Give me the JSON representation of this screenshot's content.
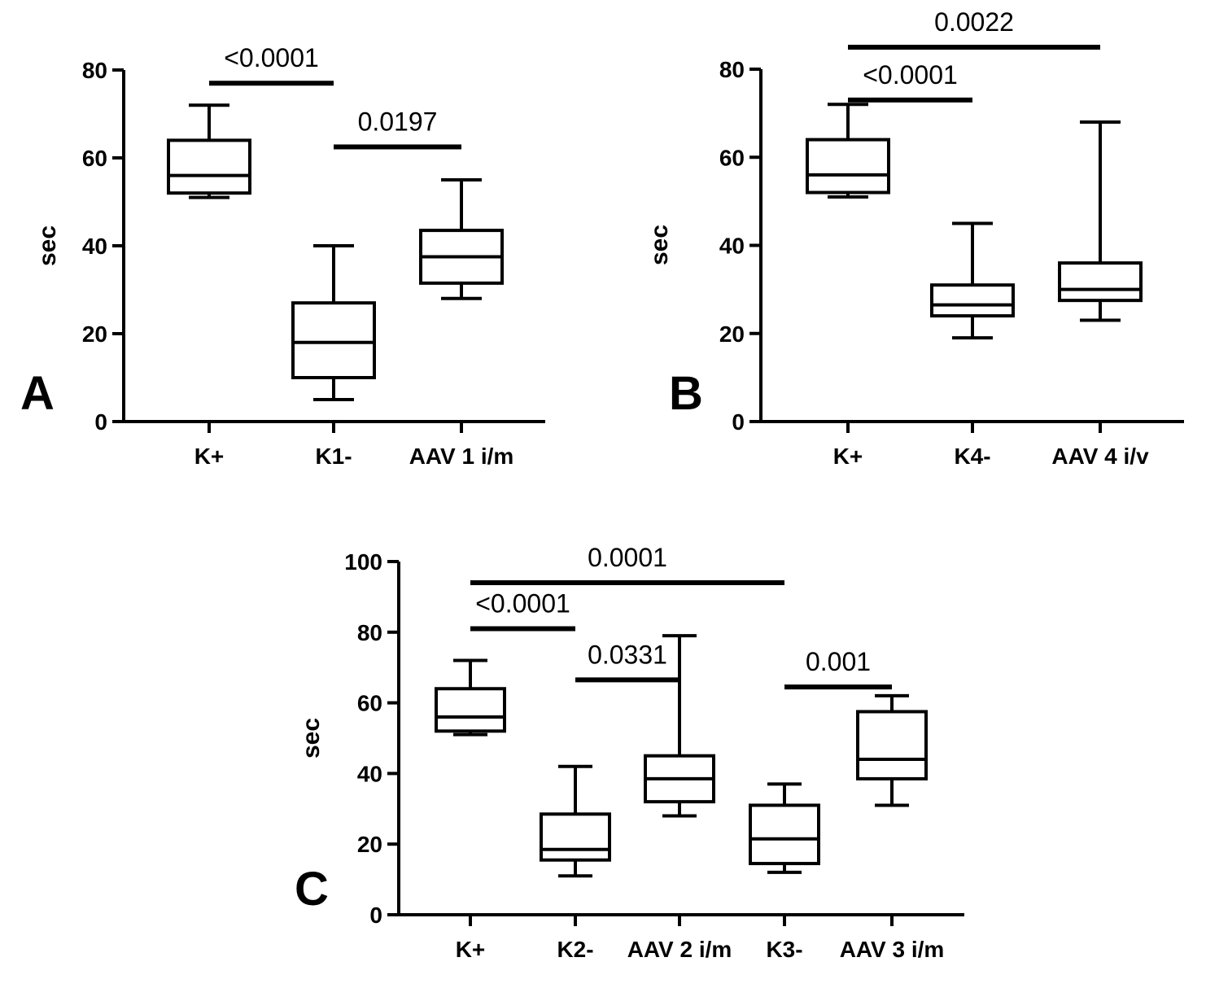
{
  "chart_data": [
    {
      "type": "box",
      "panel": "A",
      "ylabel": "sec",
      "ylim": [
        0,
        80
      ],
      "yticks": [
        0,
        20,
        40,
        60,
        80
      ],
      "categories": [
        "K+",
        "K1-",
        "AAV 1 i/m"
      ],
      "boxes": [
        {
          "min": 51,
          "q1": 52,
          "median": 56,
          "q3": 64,
          "max": 72
        },
        {
          "min": 5,
          "q1": 10,
          "median": 18,
          "q3": 27,
          "max": 40
        },
        {
          "min": 28,
          "q1": 31.5,
          "median": 37.5,
          "q3": 43.5,
          "max": 55
        }
      ],
      "comparisons": [
        {
          "from": 0,
          "to": 1,
          "y": 77,
          "label": "<0.0001"
        },
        {
          "from": 1,
          "to": 2,
          "y": 62.5,
          "label": "0.0197"
        }
      ]
    },
    {
      "type": "box",
      "panel": "B",
      "ylabel": "sec",
      "ylim": [
        0,
        80
      ],
      "yticks": [
        0,
        20,
        40,
        60,
        80
      ],
      "categories": [
        "K+",
        "K4-",
        "AAV 4 i/v"
      ],
      "boxes": [
        {
          "min": 51,
          "q1": 52,
          "median": 56,
          "q3": 64,
          "max": 72
        },
        {
          "min": 19,
          "q1": 24,
          "median": 26.5,
          "q3": 31,
          "max": 45
        },
        {
          "min": 23,
          "q1": 27.5,
          "median": 30,
          "q3": 36,
          "max": 68
        }
      ],
      "comparisons": [
        {
          "from": 0,
          "to": 2,
          "y": 85,
          "label": "0.0022"
        },
        {
          "from": 0,
          "to": 1,
          "y": 73,
          "label": "<0.0001"
        }
      ]
    },
    {
      "type": "box",
      "panel": "C",
      "ylabel": "sec",
      "ylim": [
        0,
        100
      ],
      "yticks": [
        0,
        20,
        40,
        60,
        80,
        100
      ],
      "categories": [
        "K+",
        "K2-",
        "AAV 2 i/m",
        "K3-",
        "AAV 3 i/m"
      ],
      "boxes": [
        {
          "min": 51,
          "q1": 52,
          "median": 56,
          "q3": 64,
          "max": 72
        },
        {
          "min": 11,
          "q1": 15.5,
          "median": 18.5,
          "q3": 28.5,
          "max": 42
        },
        {
          "min": 28,
          "q1": 32,
          "median": 38.5,
          "q3": 45,
          "max": 79
        },
        {
          "min": 12,
          "q1": 14.5,
          "median": 21.5,
          "q3": 31,
          "max": 37
        },
        {
          "min": 31,
          "q1": 38.5,
          "median": 44,
          "q3": 57.5,
          "max": 62
        }
      ],
      "comparisons": [
        {
          "from": 0,
          "to": 3,
          "y": 94,
          "label": "0.0001"
        },
        {
          "from": 0,
          "to": 1,
          "y": 81,
          "label": "<0.0001"
        },
        {
          "from": 1,
          "to": 2,
          "y": 66.5,
          "label": "0.0331"
        },
        {
          "from": 3,
          "to": 4,
          "y": 64.5,
          "label": "0.001"
        }
      ]
    }
  ]
}
